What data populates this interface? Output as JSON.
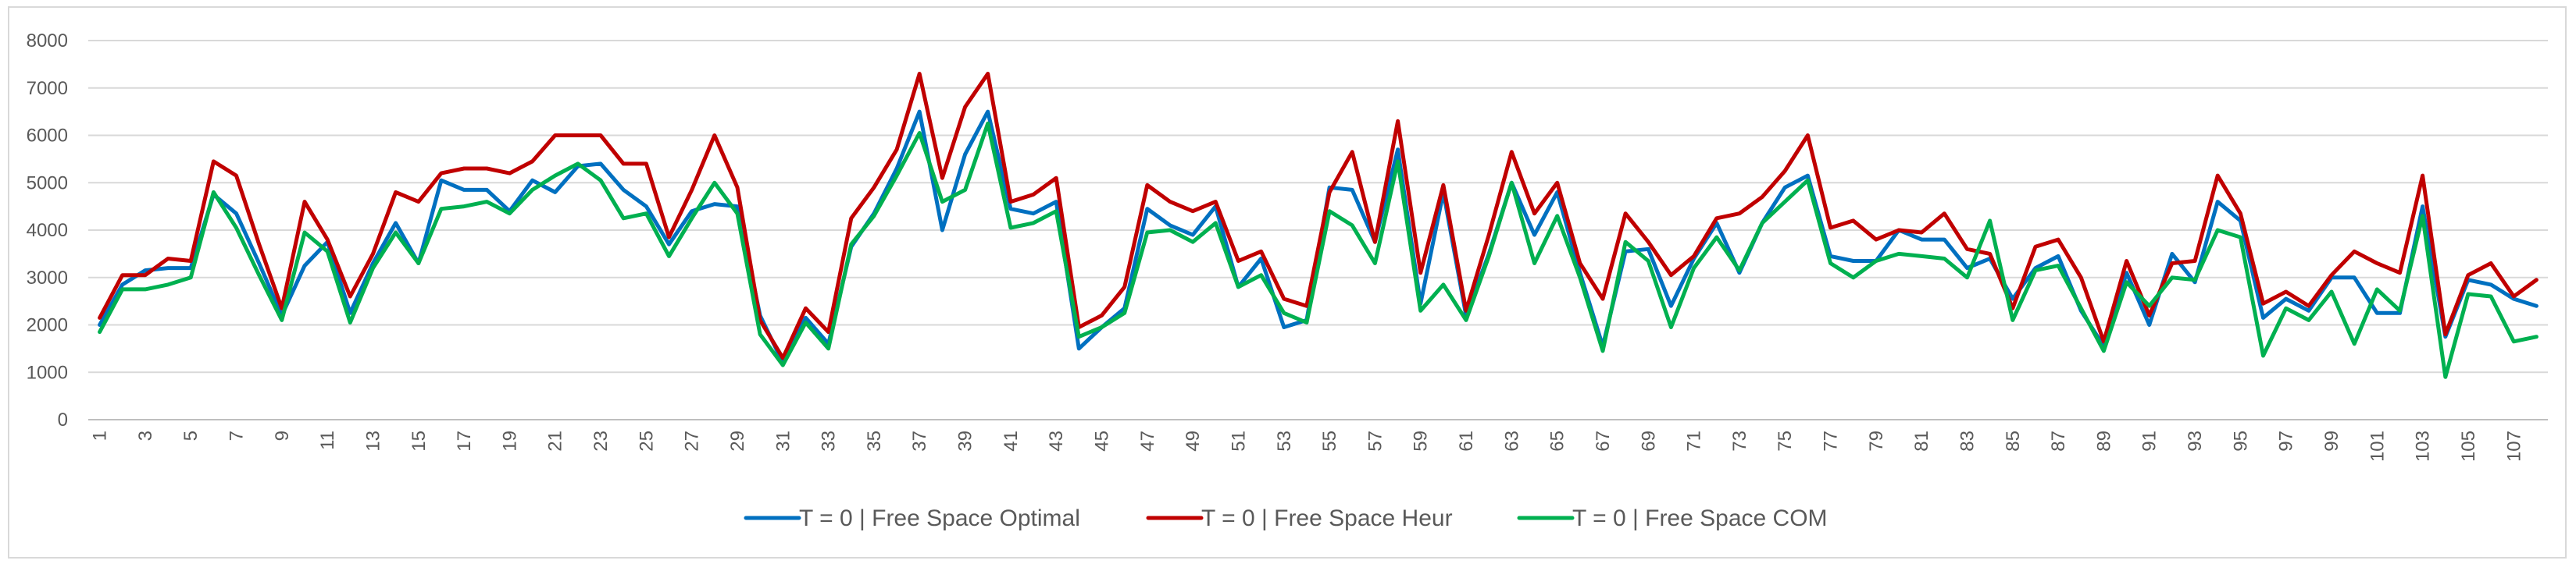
{
  "chart_data": {
    "type": "line",
    "title": "",
    "xlabel": "",
    "ylabel": "",
    "ylim": [
      0,
      8000
    ],
    "yticks": [
      0,
      1000,
      2000,
      3000,
      4000,
      5000,
      6000,
      7000,
      8000
    ],
    "grid": "horizontal",
    "legend_position": "bottom",
    "x": [
      1,
      2,
      3,
      4,
      5,
      6,
      7,
      8,
      9,
      10,
      11,
      12,
      13,
      14,
      15,
      16,
      17,
      18,
      19,
      20,
      21,
      22,
      23,
      24,
      25,
      26,
      27,
      28,
      29,
      30,
      31,
      32,
      33,
      34,
      35,
      36,
      37,
      38,
      39,
      40,
      41,
      42,
      43,
      44,
      45,
      46,
      47,
      48,
      49,
      50,
      51,
      52,
      53,
      54,
      55,
      56,
      57,
      58,
      59,
      60,
      61,
      62,
      63,
      64,
      65,
      66,
      67,
      68,
      69,
      70,
      71,
      72,
      73,
      74,
      75,
      76,
      77,
      78,
      79,
      80,
      81,
      82,
      83,
      84,
      85,
      86,
      87,
      88,
      89,
      90,
      91,
      92,
      93,
      94,
      95,
      96,
      97,
      98,
      99,
      100,
      101,
      102,
      103,
      104,
      105,
      106,
      107,
      108
    ],
    "x_tick_labels": [
      "1",
      "3",
      "5",
      "7",
      "9",
      "11",
      "13",
      "15",
      "17",
      "19",
      "21",
      "23",
      "25",
      "27",
      "29",
      "31",
      "33",
      "35",
      "37",
      "39",
      "41",
      "43",
      "45",
      "47",
      "49",
      "51",
      "53",
      "55",
      "57",
      "59",
      "61",
      "63",
      "65",
      "67",
      "69",
      "71",
      "73",
      "75",
      "77",
      "79",
      "81",
      "83",
      "85",
      "87",
      "89",
      "91",
      "93",
      "95",
      "97",
      "99",
      "101",
      "103",
      "105",
      "107"
    ],
    "series": [
      {
        "name": "T = 0 | Free Space Optimal",
        "color": "#0070c0",
        "values": [
          2000,
          2850,
          3150,
          3200,
          3200,
          4750,
          4350,
          3300,
          2200,
          3250,
          3750,
          2250,
          3300,
          4150,
          3300,
          5050,
          4850,
          4850,
          4400,
          5050,
          4800,
          5350,
          5400,
          4850,
          4500,
          3700,
          4400,
          4550,
          4500,
          2200,
          1200,
          2150,
          1600,
          3650,
          4350,
          5300,
          6500,
          4000,
          5600,
          6500,
          4450,
          4350,
          4600,
          1500,
          1950,
          2350,
          4450,
          4100,
          3900,
          4500,
          2800,
          3400,
          1950,
          2100,
          4900,
          4850,
          3750,
          5700,
          2450,
          4800,
          2200,
          3500,
          5000,
          3900,
          4800,
          3100,
          1550,
          3550,
          3600,
          2400,
          3400,
          4150,
          3100,
          4150,
          4900,
          5150,
          3450,
          3350,
          3350,
          4000,
          3800,
          3800,
          3200,
          3400,
          2550,
          3200,
          3450,
          2300,
          1550,
          3100,
          2000,
          3500,
          2900,
          4600,
          4200,
          2150,
          2550,
          2300,
          3000,
          3000,
          2250,
          2250,
          4500,
          1750,
          2950,
          2850,
          2550,
          2400
        ]
      },
      {
        "name": "T = 0 | Free Space Heur",
        "color": "#c00000",
        "values": [
          2150,
          3050,
          3050,
          3400,
          3350,
          5450,
          5150,
          3700,
          2350,
          4600,
          3800,
          2600,
          3500,
          4800,
          4600,
          5200,
          5300,
          5300,
          5200,
          5450,
          6000,
          6000,
          6000,
          5400,
          5400,
          3850,
          4850,
          6000,
          4900,
          2100,
          1300,
          2350,
          1850,
          4250,
          4900,
          5700,
          7300,
          5100,
          6600,
          7300,
          4600,
          4750,
          5100,
          1950,
          2200,
          2800,
          4950,
          4600,
          4400,
          4600,
          3350,
          3550,
          2550,
          2400,
          4800,
          5650,
          3750,
          6300,
          3100,
          4950,
          2300,
          3900,
          5650,
          4350,
          5000,
          3300,
          2550,
          4350,
          3750,
          3050,
          3450,
          4250,
          4350,
          4700,
          5250,
          6000,
          4050,
          4200,
          3800,
          4000,
          3950,
          4350,
          3600,
          3500,
          2350,
          3650,
          3800,
          3000,
          1650,
          3350,
          2200,
          3300,
          3350,
          5150,
          4350,
          2450,
          2700,
          2400,
          3050,
          3550,
          3300,
          3100,
          5150,
          1800,
          3050,
          3300,
          2600,
          2950
        ]
      },
      {
        "name": "T = 0 | Free Space COM",
        "color": "#00b050",
        "values": [
          1850,
          2750,
          2750,
          2850,
          3000,
          4800,
          4050,
          3050,
          2100,
          3950,
          3550,
          2050,
          3200,
          3950,
          3300,
          4450,
          4500,
          4600,
          4350,
          4850,
          5150,
          5400,
          5050,
          4250,
          4350,
          3450,
          4250,
          5000,
          4350,
          1800,
          1150,
          2050,
          1500,
          3700,
          4300,
          5150,
          6050,
          4600,
          4850,
          6250,
          4050,
          4150,
          4400,
          1750,
          1950,
          2250,
          3950,
          4000,
          3750,
          4150,
          2800,
          3050,
          2250,
          2050,
          4400,
          4100,
          3300,
          5450,
          2300,
          2850,
          2100,
          3450,
          5000,
          3300,
          4300,
          3000,
          1450,
          3750,
          3350,
          1950,
          3200,
          3850,
          3150,
          4150,
          4600,
          5050,
          3300,
          3000,
          3350,
          3500,
          3450,
          3400,
          3000,
          4200,
          2100,
          3150,
          3250,
          2350,
          1450,
          2900,
          2400,
          3000,
          2950,
          4000,
          3850,
          1350,
          2350,
          2100,
          2700,
          1600,
          2750,
          2300,
          4300,
          900,
          2650,
          2600,
          1650,
          1750
        ]
      }
    ]
  }
}
